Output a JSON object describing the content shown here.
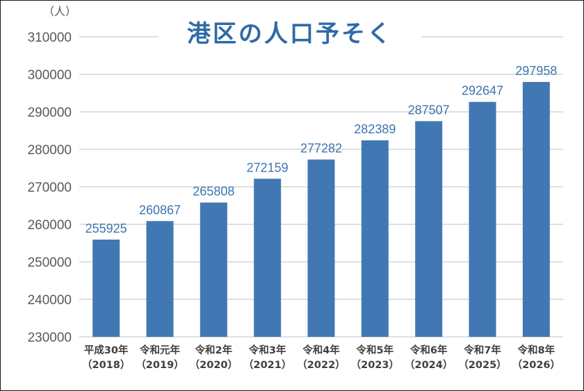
{
  "chart_data": {
    "type": "bar",
    "title": "港区の人口予そく",
    "unit_label": "（人）",
    "categories": [
      [
        "平成30年",
        "（2018）"
      ],
      [
        "令和元年",
        "（2019）"
      ],
      [
        "令和2年",
        "（2020）"
      ],
      [
        "令和3年",
        "（2021）"
      ],
      [
        "令和4年",
        "（2022）"
      ],
      [
        "令和5年",
        "（2023）"
      ],
      [
        "令和6年",
        "（2024）"
      ],
      [
        "令和7年",
        "（2025）"
      ],
      [
        "令和8年",
        "（2026）"
      ]
    ],
    "values": [
      255925,
      260867,
      265808,
      272159,
      277282,
      282389,
      287507,
      292647,
      297958
    ],
    "ylim": [
      230000,
      310000
    ],
    "yticks": [
      230000,
      240000,
      250000,
      260000,
      270000,
      280000,
      290000,
      300000,
      310000
    ],
    "grid": true,
    "legend": "none",
    "bar_color": "#4178b4",
    "title_color": "#2e6aa6",
    "label_color": "#3a75ad"
  }
}
